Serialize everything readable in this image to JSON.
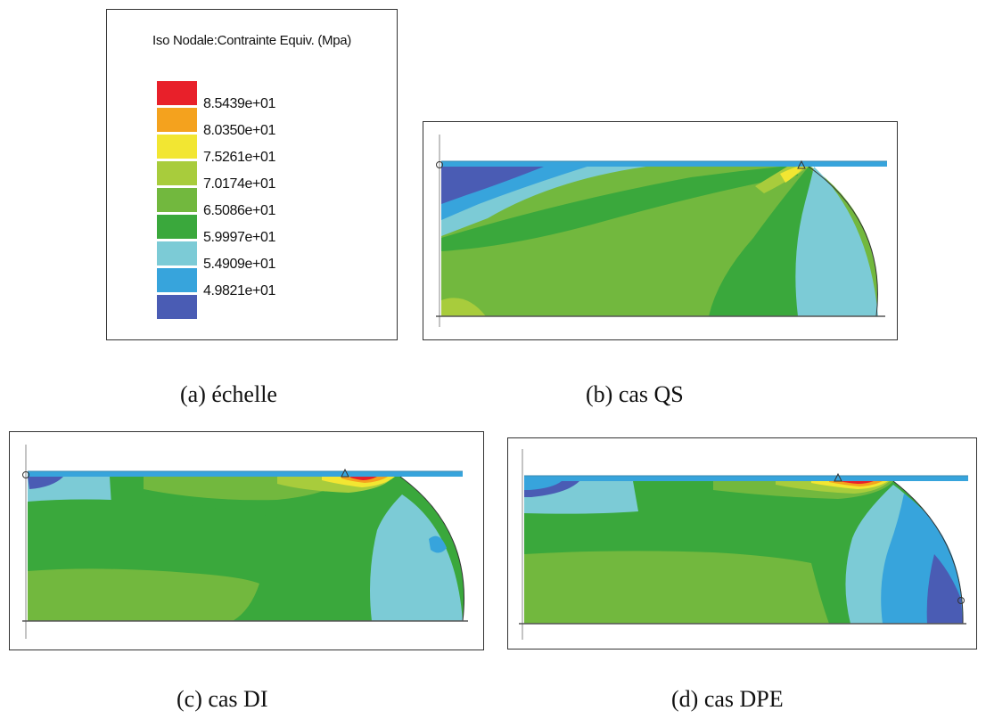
{
  "legend": {
    "title": "Iso Nodale:Contrainte Equiv. (Mpa)",
    "levels": [
      "8.5439e+01",
      "8.0350e+01",
      "7.5261e+01",
      "7.0174e+01",
      "6.5086e+01",
      "5.9997e+01",
      "5.4909e+01",
      "4.9821e+01"
    ],
    "colors": [
      "#e8202a",
      "#f4a21e",
      "#f2e632",
      "#a8cc3c",
      "#72b83e",
      "#3aa83c",
      "#7ccbd6",
      "#37a4dc",
      "#4a5cb4"
    ]
  },
  "captions": {
    "a": "(a) échelle",
    "b": "(b) cas QS",
    "c": "(c) cas DI",
    "d": "(d) cas DPE"
  }
}
